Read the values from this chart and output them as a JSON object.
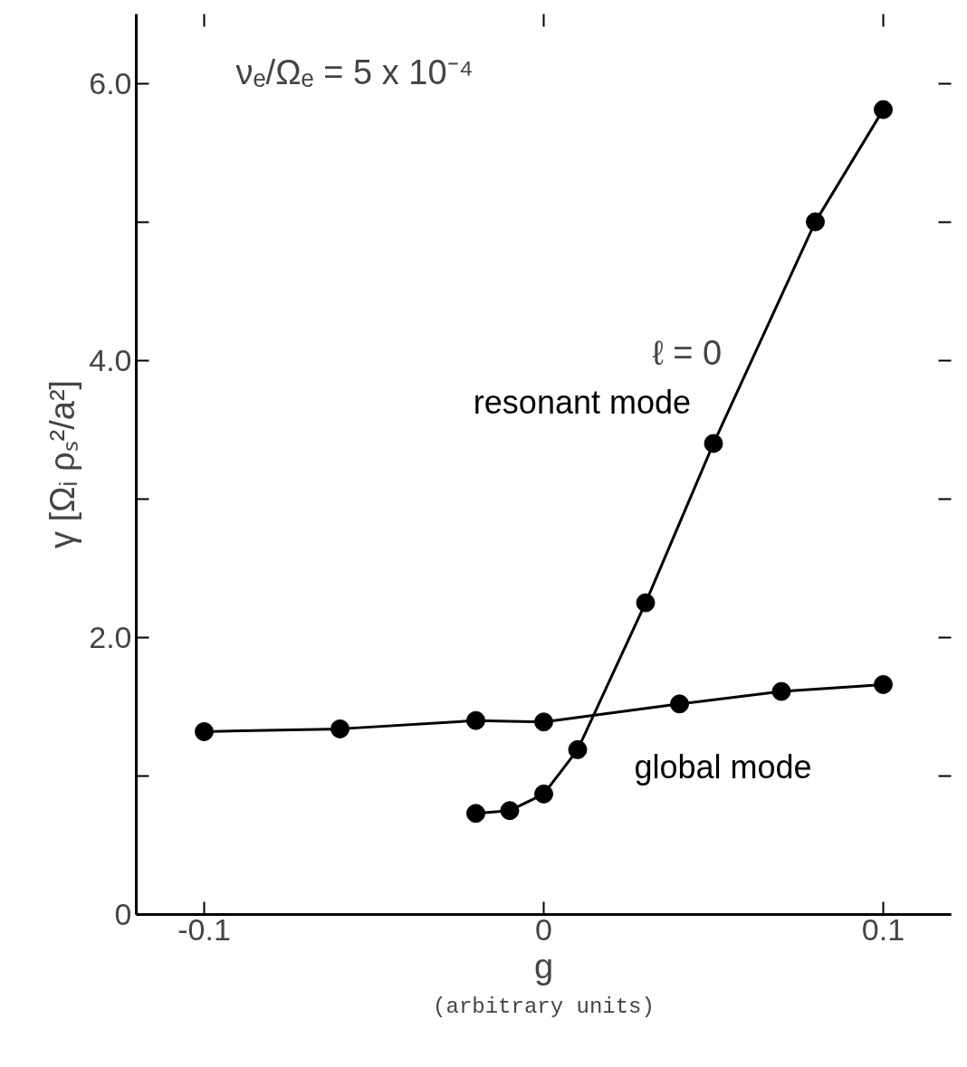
{
  "chart_data": {
    "type": "line",
    "xlabel": "g",
    "ylabel": "γ [Ωᵢ ρₛ²/a²]",
    "annotations": [
      "νₑ/Ωₑ = 5 x 10⁻⁴",
      "ℓ = 0",
      "(arbitrary units)"
    ],
    "series": [
      {
        "name": "resonant mode",
        "color": "#000000",
        "x": [
          -0.02,
          -0.01,
          0,
          0.01,
          0.03,
          0.05,
          0.08,
          0.1
        ],
        "values": [
          0.73,
          0.75,
          0.87,
          1.19,
          2.25,
          3.4,
          5.0,
          5.81
        ]
      },
      {
        "name": "global mode",
        "color": "#000000",
        "x": [
          -0.1,
          -0.06,
          -0.02,
          0,
          0.04,
          0.07,
          0.1
        ],
        "values": [
          1.32,
          1.34,
          1.4,
          1.39,
          1.52,
          1.61,
          1.66
        ]
      }
    ],
    "xlim": [
      -0.12,
      0.12
    ],
    "ylim": [
      0,
      6.5
    ],
    "xticks": [
      -0.1,
      0,
      0.1
    ],
    "yticks": [
      0,
      {
        "value": 1,
        "label": null
      },
      {
        "value": 2,
        "label": "2.0"
      },
      {
        "value": 3,
        "label": null
      },
      {
        "value": 4,
        "label": "4.0"
      },
      {
        "value": 5,
        "label": null
      },
      {
        "value": 6,
        "label": "6.0"
      }
    ],
    "grid": false,
    "marker": "circle",
    "line_style": "solid"
  }
}
